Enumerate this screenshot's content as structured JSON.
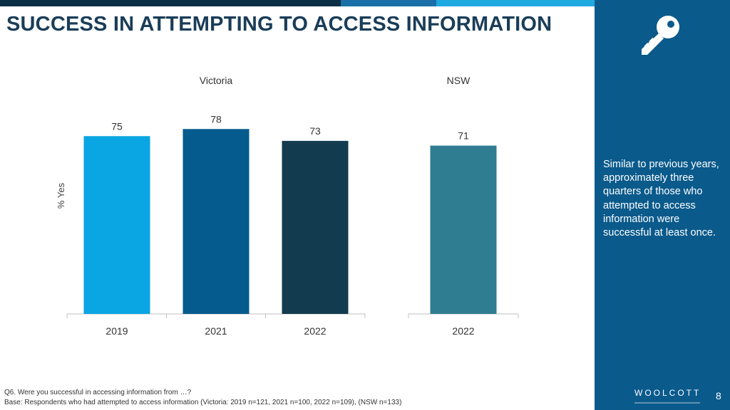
{
  "title": "SUCCESS IN ATTEMPTING TO ACCESS INFORMATION",
  "side_panel": {
    "icon": "key-icon",
    "text": "Similar to previous years, approximately three quarters of those who attempted to access information were successful at least once.",
    "logo": "WOOLCOTT",
    "page_number": "8"
  },
  "footnote": {
    "question": "Q6. Were you successful in accessing information from …?",
    "base": "Base: Respondents who had attempted to access information (Victoria: 2019 n=121, 2021 n=100, 2022 n=109), (NSW n=133)"
  },
  "colors": {
    "bar_2019": "#0aa5e3",
    "bar_2021": "#055b8d",
    "bar_2022_vic": "#123b4f",
    "bar_2022_nsw": "#2f7d91",
    "label": "#333333",
    "axis": "#bfbfbf"
  },
  "chart_data": {
    "type": "bar",
    "ylabel": "% Yes",
    "ylim": [
      0,
      100
    ],
    "grid": false,
    "groups": [
      {
        "name": "Victoria",
        "categories": [
          "2019",
          "2021",
          "2022"
        ],
        "values": [
          75,
          78,
          73
        ],
        "colors": [
          "#0aa5e3",
          "#055b8d",
          "#123b4f"
        ]
      },
      {
        "name": "NSW",
        "categories": [
          "2022"
        ],
        "values": [
          71
        ],
        "colors": [
          "#2f7d91"
        ]
      }
    ]
  }
}
